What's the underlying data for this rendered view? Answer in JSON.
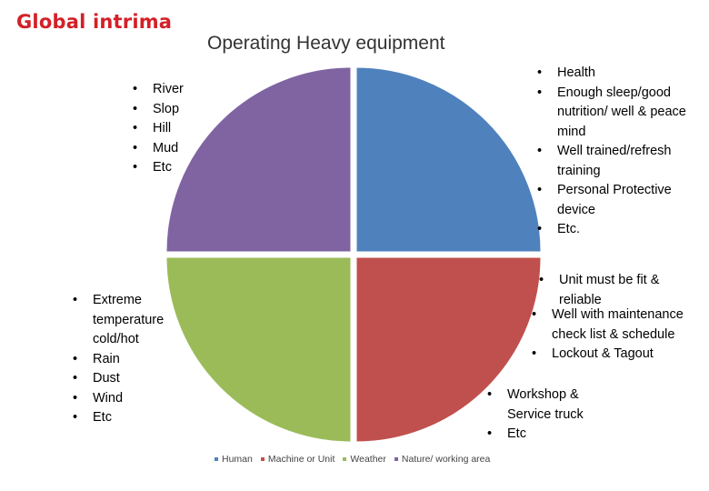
{
  "logo_text": "Global intrima",
  "title": "Operating Heavy equipment",
  "colors": {
    "human": "#4f81bd",
    "machine": "#c0504d",
    "weather": "#9bbb59",
    "nature": "#8064a2"
  },
  "callouts": {
    "nature": [
      "River",
      "Slop",
      "Hill",
      "Mud",
      "Etc"
    ],
    "human": [
      "Health",
      "Enough sleep/good nutrition/ well & peace mind",
      "Well trained/refresh training",
      "Personal Protective device",
      "Etc."
    ],
    "weather": [
      "Extreme temperature cold/hot",
      "Rain",
      "Dust",
      "Wind",
      "Etc"
    ],
    "machine_a": [
      "Unit must be fit & reliable"
    ],
    "machine_b": [
      "Well with maintenance check list & schedule",
      "Lockout & Tagout"
    ],
    "machine_c": [
      "Workshop & Service truck",
      "Etc"
    ]
  },
  "legend": [
    {
      "label": "Human",
      "color": "#4f81bd"
    },
    {
      "label": "Machine or Unit",
      "color": "#c0504d"
    },
    {
      "label": "Weather",
      "color": "#9bbb59"
    },
    {
      "label": "Nature/ working area",
      "color": "#8064a2"
    }
  ]
}
